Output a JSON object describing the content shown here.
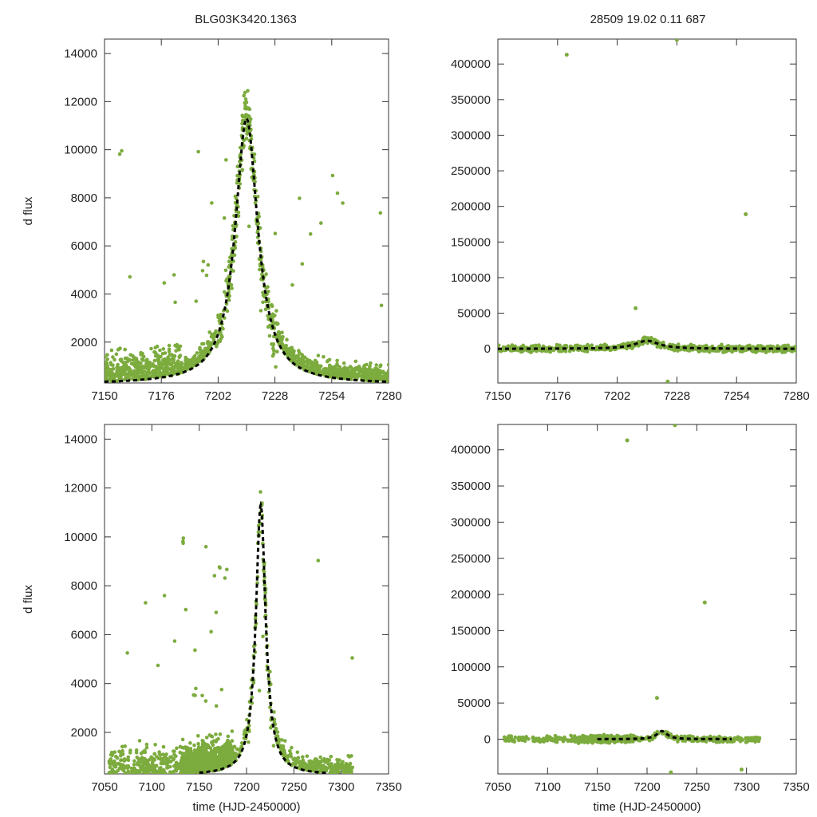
{
  "figure": {
    "title_left": "BLG03K3420.1363",
    "title_right": "28509  19.02  0.11  687",
    "ylabel": "d flux",
    "xlabel": "time (HJD-2450000)"
  },
  "chart_data": [
    {
      "type": "scatter",
      "name": "top-left",
      "xlim": [
        7150,
        7280
      ],
      "ylim": [
        300,
        14600
      ],
      "xticks": [
        7150,
        7176,
        7202,
        7228,
        7254,
        7280
      ],
      "yticks": [
        2000,
        4000,
        6000,
        8000,
        10000,
        12000,
        14000
      ],
      "ylabel": "d flux",
      "xlabel": "",
      "model": {
        "t0": 7215,
        "peak": 11300,
        "base": 250,
        "width": 7
      }
    },
    {
      "type": "scatter",
      "name": "top-right",
      "xlim": [
        7150,
        7280
      ],
      "ylim": [
        -48000,
        435000
      ],
      "xticks": [
        7150,
        7176,
        7202,
        7228,
        7254,
        7280
      ],
      "yticks": [
        0,
        50000,
        100000,
        150000,
        200000,
        250000,
        300000,
        350000,
        400000
      ],
      "ylabel": "",
      "xlabel": "",
      "model": {
        "t0": 7215,
        "peak": 11300,
        "base": 0,
        "width": 7
      },
      "outliers": [
        [
          7180,
          413000
        ],
        [
          7228,
          434000
        ],
        [
          7258,
          189000
        ],
        [
          7210,
          57000
        ],
        [
          7224,
          -46000
        ]
      ]
    },
    {
      "type": "scatter",
      "name": "bottom-left",
      "xlim": [
        7050,
        7350
      ],
      "ylim": [
        300,
        14600
      ],
      "xticks": [
        7050,
        7100,
        7150,
        7200,
        7250,
        7300,
        7350
      ],
      "yticks": [
        2000,
        4000,
        6000,
        8000,
        10000,
        12000,
        14000
      ],
      "ylabel": "d flux",
      "xlabel": "time (HJD-2450000)",
      "model": {
        "t0": 7215,
        "peak": 11300,
        "base": 250,
        "width": 7
      }
    },
    {
      "type": "scatter",
      "name": "bottom-right",
      "xlim": [
        7050,
        7350
      ],
      "ylim": [
        -48000,
        435000
      ],
      "xticks": [
        7050,
        7100,
        7150,
        7200,
        7250,
        7300,
        7350
      ],
      "yticks": [
        0,
        50000,
        100000,
        150000,
        200000,
        250000,
        300000,
        350000,
        400000
      ],
      "ylabel": "",
      "xlabel": "time (HJD-2450000)",
      "model": {
        "t0": 7215,
        "peak": 11300,
        "base": 0,
        "width": 7
      },
      "outliers": [
        [
          7180,
          413000
        ],
        [
          7228,
          434000
        ],
        [
          7258,
          189000
        ],
        [
          7210,
          57000
        ],
        [
          7224,
          -46000
        ],
        [
          7295,
          -42000
        ]
      ]
    }
  ],
  "colors": {
    "points": "#7cab3e",
    "model": "#000000"
  }
}
